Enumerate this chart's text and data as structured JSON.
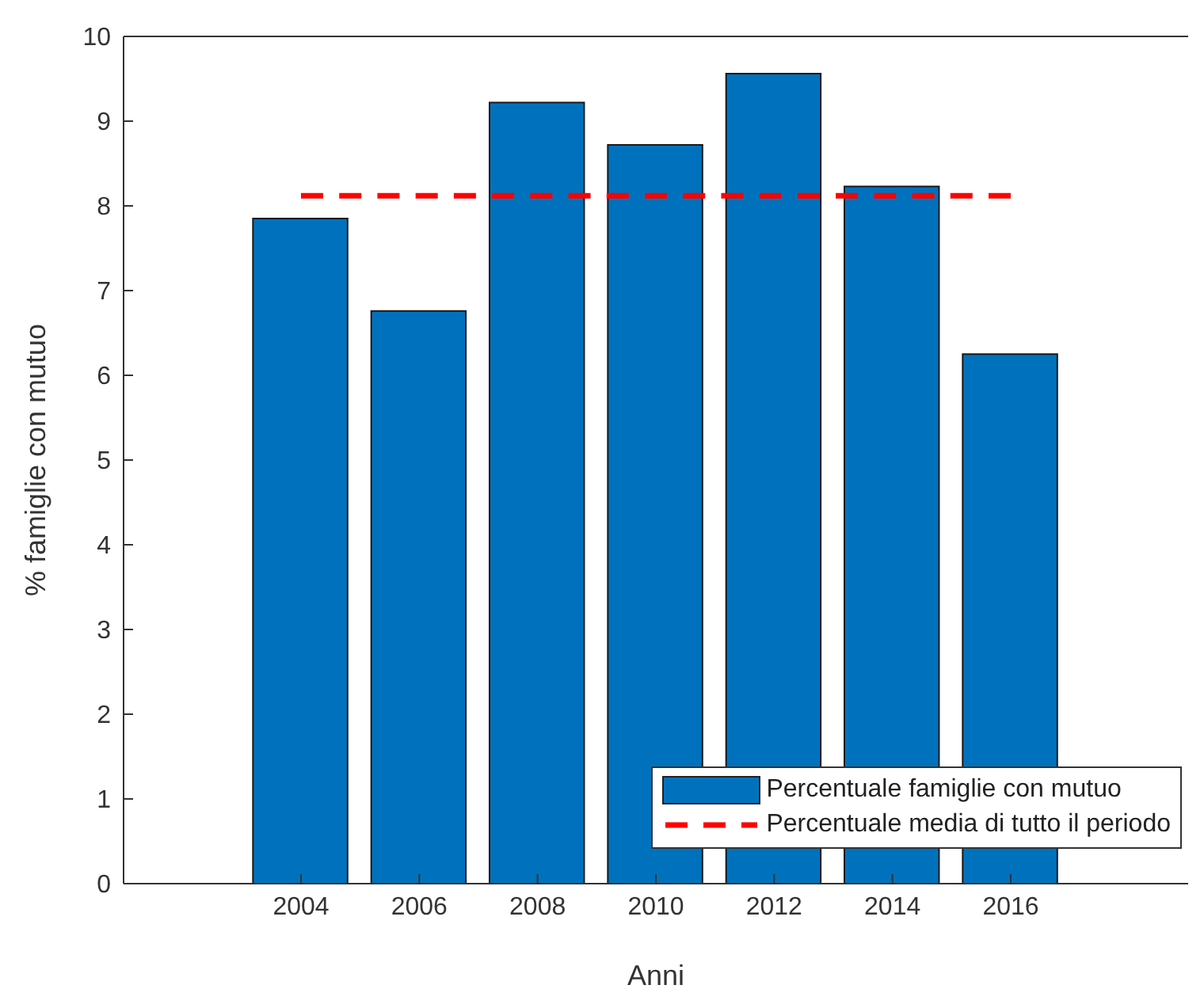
{
  "chart_data": {
    "type": "bar",
    "xlabel": "Anni",
    "ylabel": "% famiglie con mutuo",
    "x": [
      2004,
      2006,
      2008,
      2010,
      2012,
      2014,
      2016
    ],
    "xlim": [
      2001,
      2019
    ],
    "xticks": [
      2004,
      2006,
      2008,
      2010,
      2012,
      2014,
      2016
    ],
    "ylim": [
      0,
      10
    ],
    "yticks": [
      0,
      1,
      2,
      3,
      4,
      5,
      6,
      7,
      8,
      9,
      10
    ],
    "grid": false,
    "legend": "bottom right",
    "series": [
      {
        "name": "Percentuale famiglie con mutuo",
        "color": "#0072bd",
        "values": [
          7.85,
          6.76,
          9.22,
          8.72,
          9.56,
          8.23,
          6.25
        ]
      },
      {
        "name": "Percentuale media di tutto il periodo",
        "type": "line",
        "color": "#ff0000",
        "line_style": "dashed",
        "marker": "none",
        "values": [
          8.12,
          8.12,
          8.12,
          8.12,
          8.12,
          8.12,
          8.12
        ]
      }
    ]
  }
}
